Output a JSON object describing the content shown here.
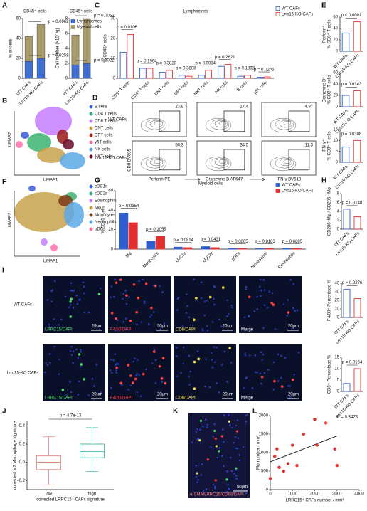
{
  "panels": [
    "A",
    "B",
    "C",
    "D",
    "E",
    "F",
    "G",
    "H",
    "I",
    "J",
    "K",
    "L"
  ],
  "chart_data": [
    {
      "type": "stacked_bar",
      "title": "CD45⁺ cells",
      "ylabel": "% all cells",
      "categories": [
        "WT CAFs",
        "Lrrc15-KO CAFs"
      ],
      "series": [
        {
          "color": "#3f6fd1",
          "values": [
            17,
            20
          ]
        },
        {
          "color": "#a89a6a",
          "values": [
            25,
            34
          ]
        }
      ],
      "ylim": [
        0,
        60
      ],
      "yticks": [
        0,
        20,
        40,
        60
      ],
      "annotations": [
        "p = 0.0962",
        "p = 0.0258"
      ]
    },
    {
      "type": "stacked_bar",
      "title": "CD45⁺ cells",
      "ylabel": "Cell number (×10⁷ /g)",
      "categories": [
        "WT CAFs",
        "Lrrc15-KO CAFs"
      ],
      "series": [
        {
          "name": "Lymphocytes",
          "color": "#3f6fd1",
          "values": [
            1.8,
            2.0
          ]
        },
        {
          "name": "Myeloid cells",
          "color": "#a89a6a",
          "values": [
            4.0,
            6.0
          ]
        }
      ],
      "ylim": [
        0,
        8
      ],
      "yticks": [
        0,
        2,
        4,
        6,
        8
      ],
      "annotations": [
        "p = 0.0062",
        "p = 0.0022"
      ]
    },
    {
      "type": "grouped_bar",
      "open": true,
      "title": "Lymphocytes",
      "ylabel": "% CD45⁺ cells",
      "categories": [
        "CD8⁺ T cells",
        "CD4⁺ T cells",
        "DNT cells",
        "DPT cells",
        "NKT cells",
        "NK cells",
        "B cells",
        "γδT cells"
      ],
      "series": [
        {
          "name": "WT CAFs",
          "color": "#2f5fcf",
          "values": [
            13,
            5,
            3,
            1.5,
            1.5,
            6,
            1,
            0.5
          ]
        },
        {
          "name": "Lrrc15-KO CAFs",
          "color": "#e03030",
          "values": [
            22,
            5,
            4,
            1,
            4,
            7,
            1.5,
            0.7
          ]
        }
      ],
      "ylim": [
        0,
        30
      ],
      "yticks": [
        0,
        10,
        20,
        30
      ],
      "annotations": [
        "p = 0.0106",
        "p = 0.1964",
        "p = 0.3820",
        "p = 0.3808",
        "p = 0.0034",
        "p = 0.2621",
        "p = 0.1893",
        "p = 0.0245"
      ]
    },
    {
      "type": "bar",
      "open": true,
      "ylabel": [
        "Perforin⁺",
        "% CD8⁺ T cells"
      ],
      "categories": [
        "WT CAFs",
        "Lrrc15-KO CAFs"
      ],
      "values": [
        32,
        52
      ],
      "colors": [
        "#2f5fcf",
        "#e03030"
      ],
      "ylim": [
        0,
        60
      ],
      "yticks": [
        0,
        20,
        40,
        60
      ],
      "annotations": [
        "p < 0.0001"
      ]
    },
    {
      "type": "bar",
      "open": true,
      "ylabel": [
        "Granzyme B⁺",
        "% CD8⁺ T cells"
      ],
      "categories": [
        "WT CAFs",
        "Lrrc15-KO CAFs"
      ],
      "values": [
        20,
        28
      ],
      "colors": [
        "#2f5fcf",
        "#e03030"
      ],
      "ylim": [
        0,
        60
      ],
      "yticks": [
        0,
        20,
        40,
        60
      ],
      "annotations": [
        "p = 0.0143"
      ]
    },
    {
      "type": "bar",
      "open": true,
      "ylabel": [
        "IFN-γ⁺",
        "% CD8⁺ T cells"
      ],
      "categories": [
        "WT CAFs",
        "Lrrc15-KO CAFs"
      ],
      "values": [
        7,
        10
      ],
      "colors": [
        "#2f5fcf",
        "#e03030"
      ],
      "ylim": [
        0,
        15
      ],
      "yticks": [
        0,
        5,
        10,
        15
      ],
      "annotations": [
        "p = 0.0308"
      ]
    },
    {
      "type": "grouped_bar",
      "open": false,
      "title": "Myeloid cells",
      "ylabel": "% CD45⁺ cells",
      "categories": [
        "Mφ",
        "Monocytes",
        "cDC1s",
        "cDC2s",
        "pDCs",
        "Neutrophils",
        "Eosinophils"
      ],
      "series": [
        {
          "name": "WT CAFs",
          "color": "#2f5fcf",
          "values": [
            37,
            8,
            2,
            2.5,
            0.5,
            0.5,
            0.5
          ]
        },
        {
          "name": "Lrrc15-KO CAFs",
          "color": "#e03030",
          "values": [
            27,
            13,
            1.5,
            1.5,
            0.5,
            0.5,
            0.5
          ]
        }
      ],
      "ylim": [
        0,
        60
      ],
      "yticks": [
        0,
        20,
        40,
        60
      ],
      "annotations": [
        "p = 0.0354",
        "p = 0.1055",
        "p = 0.0814",
        "p = 0.0431",
        "p = 0.0865",
        "p = 0.8183",
        "p = 0.6895"
      ]
    },
    {
      "type": "bar",
      "open": true,
      "ylabel": "CD206⁺Mφ / CD206⁻ Mφ",
      "categories": [
        "WT CAFs",
        "Lrrc15-KO CAFs"
      ],
      "values": [
        4.5,
        2.8
      ],
      "colors": [
        "#2f5fcf",
        "#e03030"
      ],
      "ylim": [
        0,
        8
      ],
      "yticks": [
        0,
        2,
        4,
        6,
        8
      ],
      "annotations": [
        "p = 0.0148"
      ]
    },
    {
      "type": "bar",
      "open": true,
      "ylabel": "F4/80⁺ Percentage %",
      "categories": [
        "WT CAFs",
        "Lrrc15-KO CAFs"
      ],
      "values": [
        33,
        22
      ],
      "colors": [
        "#2f5fcf",
        "#e03030"
      ],
      "ylim": [
        0,
        40
      ],
      "yticks": [
        0,
        10,
        20,
        30,
        40
      ],
      "annotations": [
        "p = 0.0276"
      ]
    },
    {
      "type": "bar",
      "open": true,
      "ylabel": "CD8⁺ Percentage %",
      "categories": [
        "WT CAFs",
        "Lrrc15-KO CAFs"
      ],
      "values": [
        3.5,
        10
      ],
      "colors": [
        "#2f5fcf",
        "#e03030"
      ],
      "ylim": [
        0,
        15
      ],
      "yticks": [
        0,
        5,
        10,
        15
      ],
      "annotations": [
        "p = 0.0164"
      ]
    },
    {
      "type": "box",
      "ylabel": "corrected M2 Macrophage signature",
      "xlabel": "corrected LRRC15⁺ CAFs signature",
      "categories": [
        "low",
        "high"
      ],
      "colors": [
        "#e8877f",
        "#45b8ac"
      ],
      "boxes": [
        {
          "whislo": -0.25,
          "q1": -0.08,
          "med": 0.0,
          "q3": 0.07,
          "whishi": 0.28
        },
        {
          "whislo": -0.1,
          "q1": 0.05,
          "med": 0.12,
          "q3": 0.2,
          "whishi": 0.38
        }
      ],
      "ylim": [
        -0.3,
        0.45
      ],
      "yticks": [
        {
          "value": -0.2,
          "label": "−0.2"
        },
        {
          "value": 0,
          "label": "0.0"
        },
        {
          "value": 0.2,
          "label": "0.2"
        },
        {
          "value": 0.4,
          "label": "0.4"
        }
      ],
      "annotations": [
        "p = 4.7e-13"
      ]
    },
    {
      "type": "scatter",
      "xlabel": "LRRC15⁺ CAFs number / mm²",
      "ylabel": "Mφ number / mm²",
      "color": "#e03030",
      "x": [
        0,
        200,
        300,
        400,
        600,
        800,
        1000,
        1200,
        1500,
        2000,
        2100,
        2500,
        2900,
        3000
      ],
      "y": [
        300,
        900,
        1100,
        600,
        500,
        700,
        1200,
        650,
        1500,
        1900,
        1200,
        1800,
        1100,
        650
      ],
      "fit": {
        "x": [
          0,
          3000
        ],
        "y": [
          750,
          1450
        ]
      },
      "xlim": [
        0,
        4000
      ],
      "xticks": [
        0,
        1000,
        2000,
        3000,
        4000
      ],
      "ylim": [
        0,
        2000
      ],
      "yticks": [
        0,
        500,
        1000,
        1500,
        2000
      ],
      "annotations": [
        "R² = 0.3473"
      ]
    }
  ],
  "umaps": [
    {
      "xlabel": "UMAP1",
      "ylabel": "UMAP2",
      "clusters": [
        {
          "name": "B cells",
          "color": "#3b5bdb"
        },
        {
          "name": "CD4 T cells",
          "color": "#3cb371"
        },
        {
          "name": "CD8 T cells",
          "color": "#c77dff"
        },
        {
          "name": "DNT cells",
          "color": "#c8a24b"
        },
        {
          "name": "DPT cells",
          "color": "#9b1b1b"
        },
        {
          "name": "γδT cells",
          "color": "#ff6fae"
        },
        {
          "name": "NK cells",
          "color": "#5aa9e6"
        },
        {
          "name": "NKT cells",
          "color": "#6a0a2a"
        }
      ]
    },
    {
      "xlabel": "UMAP1",
      "ylabel": "UMAP2",
      "clusters": [
        {
          "name": "cDC1s",
          "color": "#3b5bdb"
        },
        {
          "name": "cDC2s",
          "color": "#3cb371"
        },
        {
          "name": "Eosinophils",
          "color": "#c77dff"
        },
        {
          "name": "Mφ",
          "color": "#c8a24b"
        },
        {
          "name": "Monocytes",
          "color": "#7a3b1a"
        },
        {
          "name": "Neutrophils",
          "color": "#5aa9e6"
        },
        {
          "name": "pDCs",
          "color": "#ff6fae"
        }
      ]
    }
  ],
  "flow": {
    "rows": [
      "WT CAFs",
      "Lrrc15-KO CAFs"
    ],
    "markers": [
      "Perforin PE",
      "Granzyme B AF647",
      "IFN-γ BV510"
    ],
    "ylabel": "CD8 BV605",
    "gates": [
      [
        "23.9",
        "17.4",
        "4.97"
      ],
      [
        "60.3",
        "34.5",
        "11.3"
      ]
    ]
  },
  "micrographs": {
    "rows": [
      "WT CAFs",
      "Lrrc15-KO CAFs"
    ],
    "channels": [
      "LRRC15/DAPI",
      "F4/80/DAPI",
      "CD8/DAPI",
      "Merge"
    ],
    "scale": "20μm"
  },
  "tissue": {
    "stain": "α-SMA/LRRC15/CD68/DAPI",
    "scale": "50μm"
  }
}
